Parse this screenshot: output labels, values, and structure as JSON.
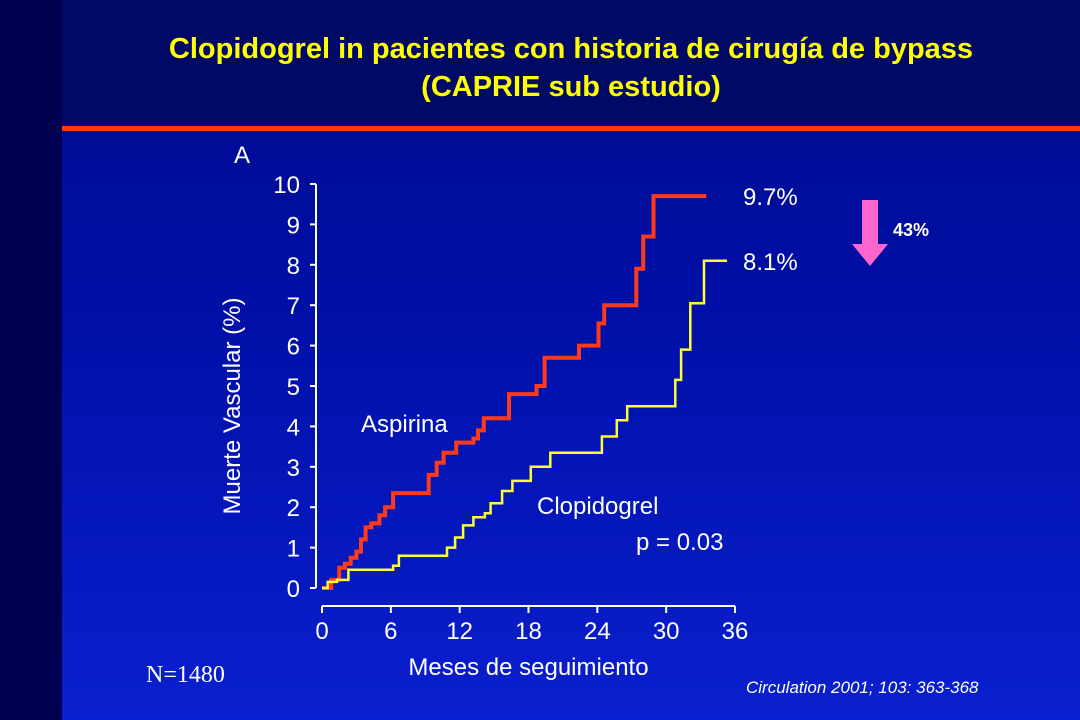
{
  "title_line1": "Clopidogrel in pacientes con historia de cirugía de bypass",
  "title_line2": "(CAPRIE sub estudio)",
  "n_label": "N=1480",
  "citation": "Circulation 2001; 103: 363-368",
  "colors": {
    "title": "#ffff00",
    "rule": "#ff3a1a",
    "aspirina": "#ff3a1a",
    "clopidogrel": "#ffff33",
    "arrow": "#ff66cc",
    "text": "#ffffff"
  },
  "chart_data": {
    "type": "line",
    "step": true,
    "panel_label": "A",
    "xlabel": "Meses de seguimiento",
    "ylabel": "Muerte Vascular (%)",
    "xlim": [
      0,
      36
    ],
    "ylim": [
      0,
      10
    ],
    "x_ticks": [
      0,
      6,
      12,
      18,
      24,
      30,
      36
    ],
    "y_ticks": [
      0,
      1,
      2,
      3,
      4,
      5,
      6,
      7,
      8,
      9,
      10
    ],
    "grid": false,
    "series": [
      {
        "name": "Aspirina",
        "color_key": "aspirina",
        "end_label": "9.7%",
        "points": [
          [
            0,
            0
          ],
          [
            0.8,
            0.2
          ],
          [
            1.5,
            0.5
          ],
          [
            2,
            0.6
          ],
          [
            2.5,
            0.75
          ],
          [
            3,
            0.9
          ],
          [
            3.4,
            1.2
          ],
          [
            3.8,
            1.5
          ],
          [
            4.3,
            1.6
          ],
          [
            5,
            1.8
          ],
          [
            5.5,
            2
          ],
          [
            6.2,
            2.35
          ],
          [
            9.3,
            2.8
          ],
          [
            10,
            3.1
          ],
          [
            10.6,
            3.35
          ],
          [
            11.7,
            3.6
          ],
          [
            13.2,
            3.7
          ],
          [
            13.6,
            3.9
          ],
          [
            14.1,
            4.2
          ],
          [
            16.3,
            4.8
          ],
          [
            18.7,
            5
          ],
          [
            19.4,
            5.7
          ],
          [
            22.4,
            6
          ],
          [
            24.1,
            6.55
          ],
          [
            24.6,
            7
          ],
          [
            27.4,
            7.9
          ],
          [
            28,
            8.7
          ],
          [
            28.9,
            9.7
          ],
          [
            33.5,
            9.7
          ]
        ]
      },
      {
        "name": "Clopidogrel",
        "color_key": "clopidogrel",
        "end_label": "8.1%",
        "points": [
          [
            0,
            0
          ],
          [
            0.5,
            0.15
          ],
          [
            1.3,
            0.2
          ],
          [
            2.3,
            0.45
          ],
          [
            6.2,
            0.55
          ],
          [
            6.7,
            0.8
          ],
          [
            10.9,
            1
          ],
          [
            11.6,
            1.25
          ],
          [
            12.3,
            1.55
          ],
          [
            13.2,
            1.75
          ],
          [
            14.2,
            1.85
          ],
          [
            14.7,
            2.1
          ],
          [
            15.7,
            2.4
          ],
          [
            16.6,
            2.65
          ],
          [
            18.2,
            3
          ],
          [
            19.9,
            3.35
          ],
          [
            24.4,
            3.75
          ],
          [
            25.7,
            4.15
          ],
          [
            26.6,
            4.5
          ],
          [
            30.8,
            5.15
          ],
          [
            31.3,
            5.9
          ],
          [
            32.1,
            7.05
          ],
          [
            33.3,
            8.1
          ],
          [
            35.3,
            8.1
          ]
        ]
      }
    ],
    "annotations": {
      "series_label_aspirina": "Aspirina",
      "series_label_clopidogrel": "Clopidogrel",
      "p_value": "p = 0.03",
      "reduction": "43%",
      "arrow": "down-arrow"
    }
  }
}
